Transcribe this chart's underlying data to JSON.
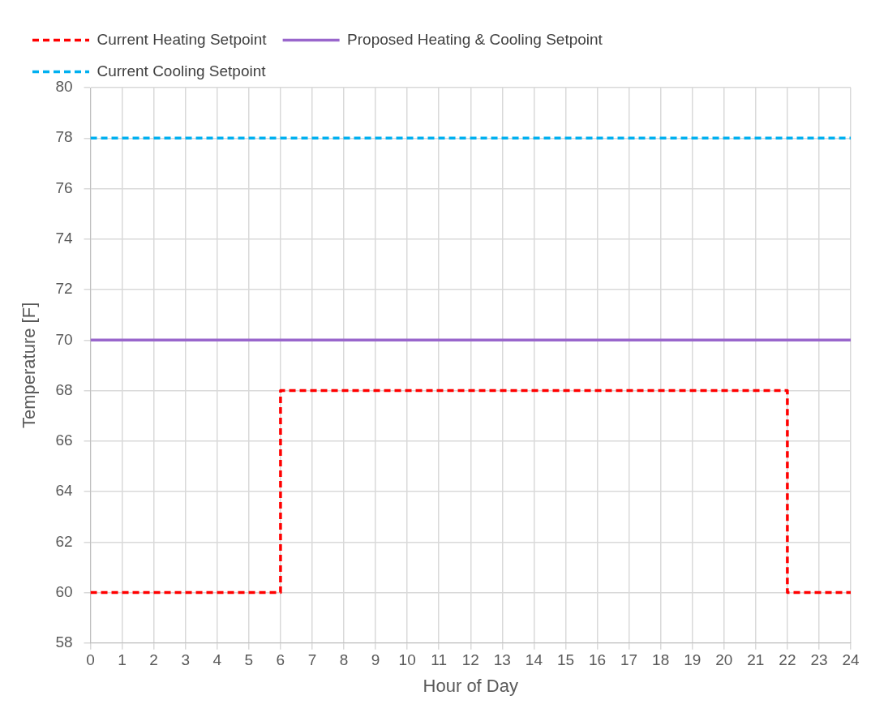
{
  "chart_data": {
    "type": "line",
    "xlabel": "Hour of Day",
    "ylabel": "Temperature [F]",
    "xlim": [
      0,
      24
    ],
    "xticks": [
      0,
      1,
      2,
      3,
      4,
      5,
      6,
      7,
      8,
      9,
      10,
      11,
      12,
      13,
      14,
      15,
      16,
      17,
      18,
      19,
      20,
      21,
      22,
      23,
      24
    ],
    "ylim": [
      58,
      80
    ],
    "yticks": [
      58,
      60,
      62,
      64,
      66,
      68,
      70,
      72,
      74,
      76,
      78,
      80
    ],
    "grid": true,
    "legend": "top",
    "marker": "none",
    "series": [
      {
        "name": "Current Heating Setpoint",
        "color": "#ff0000",
        "line_style": "dashed",
        "x": [
          0,
          6,
          6,
          22,
          22,
          24
        ],
        "values": [
          60,
          60,
          68,
          68,
          60,
          60
        ]
      },
      {
        "name": "Proposed Heating & Cooling Setpoint",
        "color": "#9966cc",
        "line_style": "solid",
        "x": [
          0,
          24
        ],
        "values": [
          70,
          70
        ]
      },
      {
        "name": "Current Cooling Setpoint",
        "color": "#00b0f0",
        "line_style": "dashed",
        "x": [
          0,
          24
        ],
        "values": [
          78,
          78
        ]
      }
    ]
  }
}
